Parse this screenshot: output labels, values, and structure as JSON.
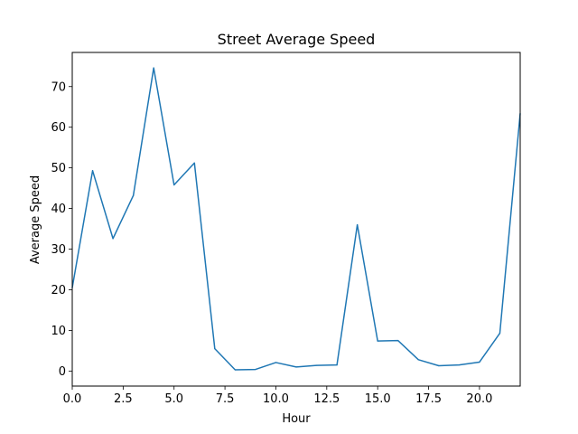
{
  "chart_data": {
    "type": "line",
    "title": "Street Average Speed",
    "xlabel": "Hour",
    "ylabel": "Average Speed",
    "xlim": [
      0,
      22
    ],
    "ylim": [
      -3.7,
      78.4
    ],
    "grid": false,
    "legend": "none",
    "x_ticks": [
      0,
      2.5,
      5,
      7.5,
      10,
      12.5,
      15,
      17.5,
      20
    ],
    "x_tick_labels": [
      "0.0",
      "2.5",
      "5.0",
      "7.5",
      "10.0",
      "12.5",
      "15.0",
      "17.5",
      "20.0"
    ],
    "y_ticks": [
      0,
      10,
      20,
      30,
      40,
      50,
      60,
      70
    ],
    "y_tick_labels": [
      "0",
      "10",
      "20",
      "30",
      "40",
      "50",
      "60",
      "70"
    ],
    "series": [
      {
        "color": "#1f77b4",
        "x": [
          0,
          1,
          2,
          3,
          4,
          5,
          6,
          7,
          8,
          9,
          10,
          11,
          12,
          13,
          14,
          15,
          16,
          17,
          18,
          19,
          20,
          21,
          22
        ],
        "values": [
          20.5,
          49.3,
          32.6,
          43.2,
          74.6,
          45.8,
          51.2,
          5.5,
          0.3,
          0.4,
          2.1,
          1.0,
          1.4,
          1.5,
          36.0,
          7.4,
          7.5,
          2.8,
          1.3,
          1.5,
          2.2,
          9.3,
          63.4
        ]
      }
    ]
  }
}
